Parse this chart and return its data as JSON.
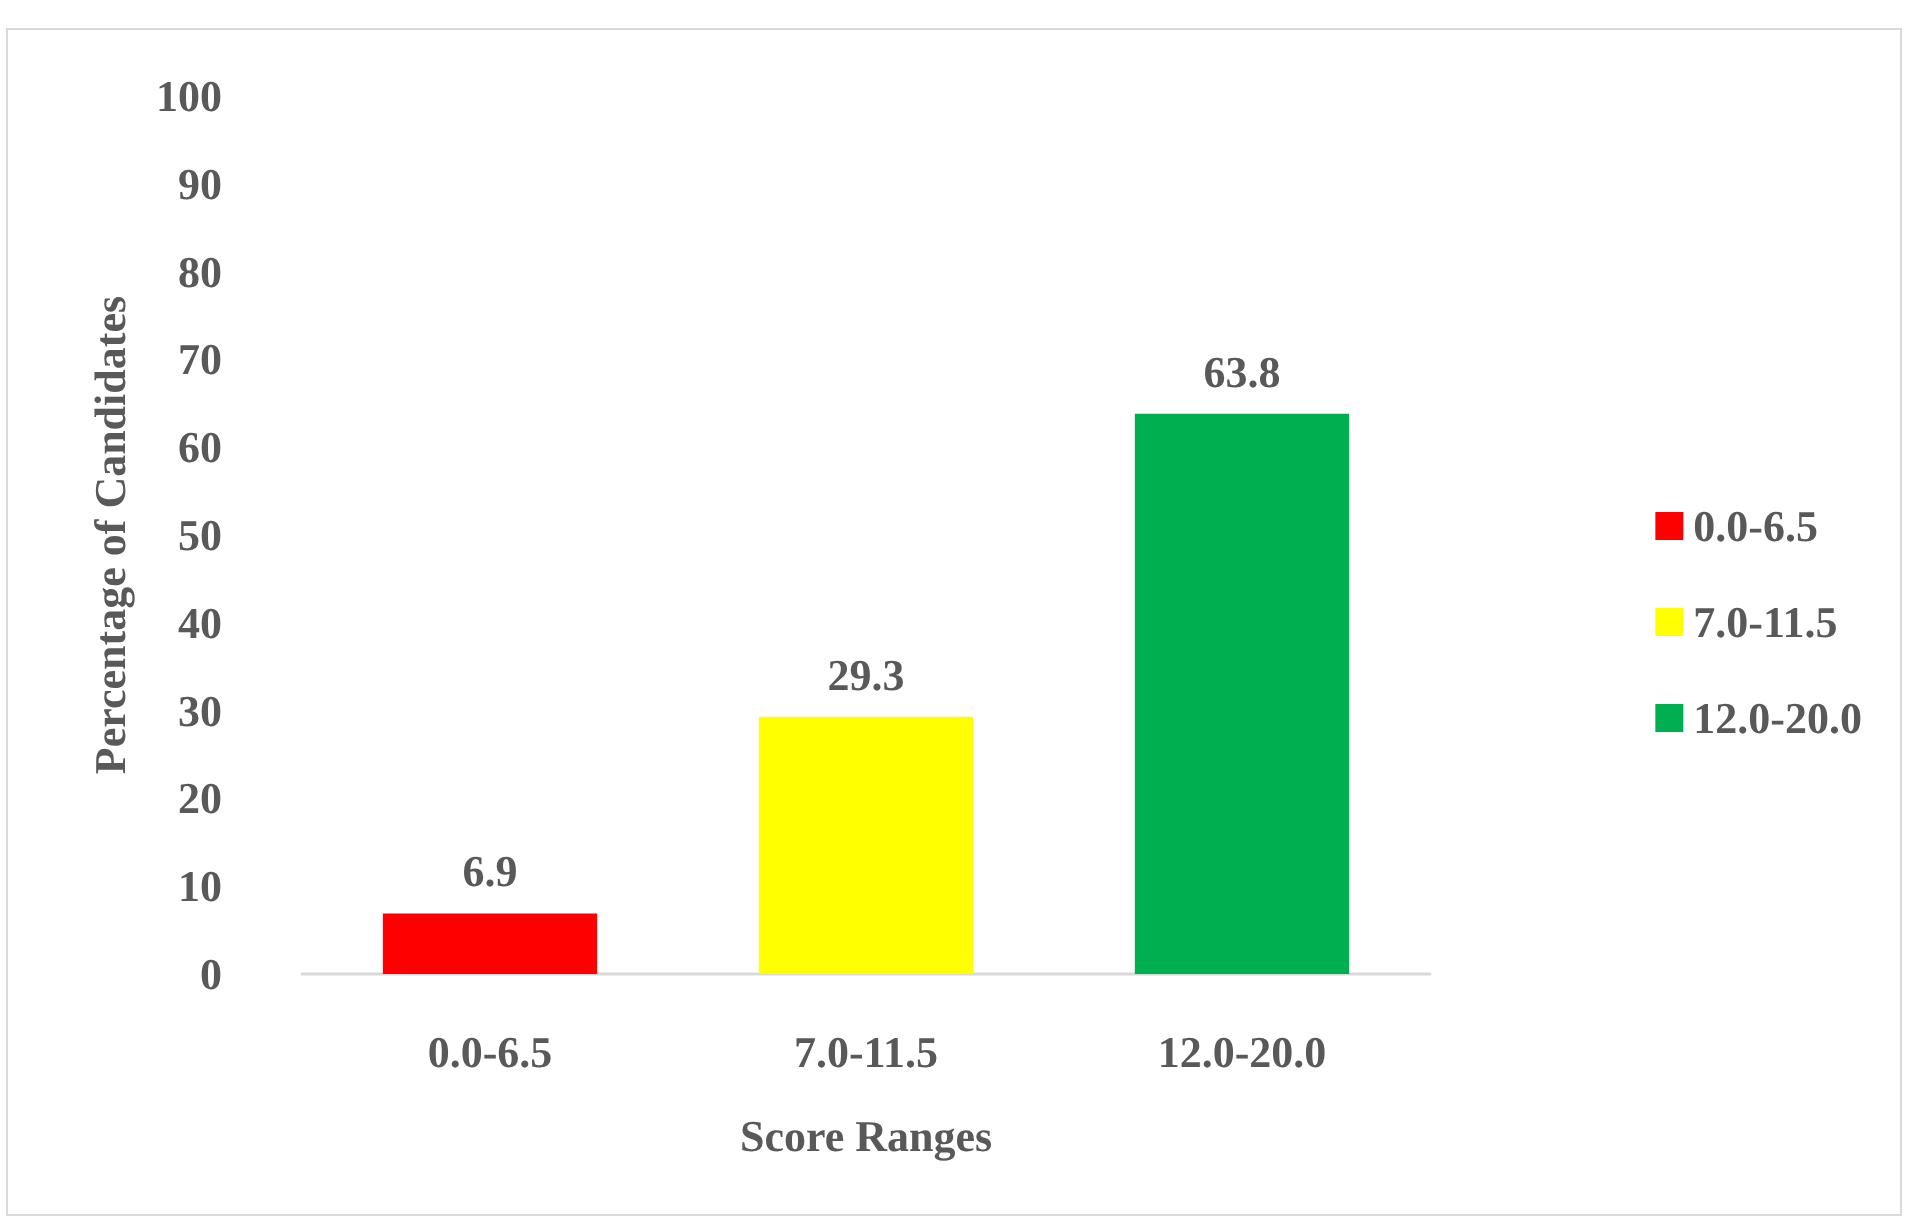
{
  "chart_data": {
    "type": "bar",
    "xlabel": "Score Ranges",
    "ylabel": "Percentage of Candidates",
    "categories": [
      "0.0-6.5",
      "7.0-11.5",
      "12.0-20.0"
    ],
    "series": [
      {
        "name": "0.0-6.5",
        "color": "#ff0000",
        "values": [
          6.9,
          null,
          null
        ]
      },
      {
        "name": "7.0-11.5",
        "color": "#ffff00",
        "values": [
          null,
          29.3,
          null
        ]
      },
      {
        "name": "12.0-20.0",
        "color": "#00b050",
        "values": [
          null,
          null,
          63.8
        ]
      }
    ],
    "ylim": [
      0,
      100
    ],
    "yticks": [
      0,
      10,
      20,
      30,
      40,
      50,
      60,
      70,
      80,
      90,
      100
    ],
    "grid": false,
    "legend": "right",
    "data_labels": true
  }
}
